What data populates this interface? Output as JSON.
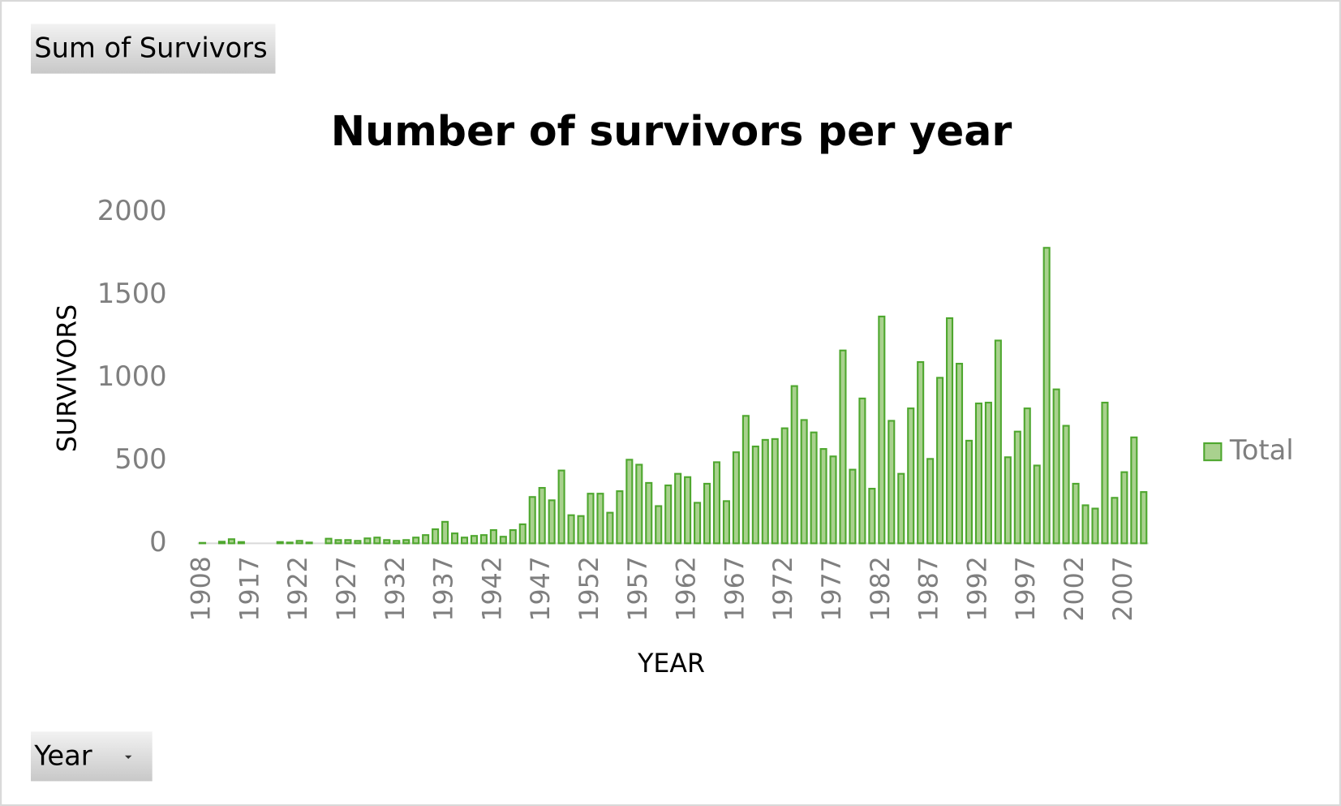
{
  "pivot_buttons": {
    "values_field": "Sum of Survivors",
    "axis_field": "Year"
  },
  "chart_data": {
    "type": "bar",
    "title": "Number of survivors per year",
    "x_label": "YEAR",
    "y_label": "SURVIVORS",
    "categories": [
      "1908",
      null,
      null,
      null,
      null,
      "1917",
      null,
      null,
      null,
      null,
      "1922",
      null,
      null,
      null,
      null,
      "1927",
      null,
      null,
      null,
      null,
      "1932",
      null,
      null,
      null,
      null,
      "1937",
      null,
      null,
      null,
      null,
      "1942",
      null,
      null,
      null,
      null,
      "1947",
      null,
      null,
      null,
      null,
      "1952",
      null,
      null,
      null,
      null,
      "1957",
      null,
      null,
      null,
      null,
      "1962",
      null,
      null,
      null,
      null,
      "1967",
      null,
      null,
      null,
      null,
      "1972",
      null,
      null,
      null,
      null,
      "1977",
      null,
      null,
      null,
      null,
      "1982",
      null,
      null,
      null,
      null,
      "1987",
      null,
      null,
      null,
      null,
      "1992",
      null,
      null,
      null,
      null,
      "1997",
      null,
      null,
      null,
      null,
      "2002",
      null,
      null,
      null,
      null,
      "2007",
      null,
      null
    ],
    "series": [
      {
        "name": "Total",
        "color": "#a9d18e",
        "edge_color": "#4ea72e",
        "values": [
          3,
          0,
          10,
          25,
          8,
          0,
          0,
          0,
          8,
          5,
          15,
          5,
          0,
          28,
          20,
          20,
          15,
          30,
          35,
          20,
          15,
          20,
          35,
          50,
          85,
          130,
          60,
          35,
          45,
          50,
          80,
          40,
          80,
          115,
          280,
          335,
          260,
          440,
          170,
          165,
          300,
          300,
          185,
          315,
          505,
          475,
          365,
          225,
          350,
          420,
          400,
          245,
          360,
          490,
          255,
          550,
          770,
          585,
          625,
          630,
          695,
          950,
          745,
          670,
          570,
          525,
          1165,
          445,
          875,
          330,
          1370,
          740,
          420,
          815,
          1095,
          510,
          1000,
          1360,
          1085,
          620,
          845,
          850,
          1225,
          520,
          675,
          815,
          470,
          1785,
          930,
          710,
          360,
          230,
          210,
          850,
          275,
          430,
          640,
          310
        ]
      }
    ],
    "ylim": [
      0,
      2000
    ],
    "yticks": [
      0,
      500,
      1000,
      1500,
      2000
    ],
    "grid": false,
    "legend": "right"
  }
}
